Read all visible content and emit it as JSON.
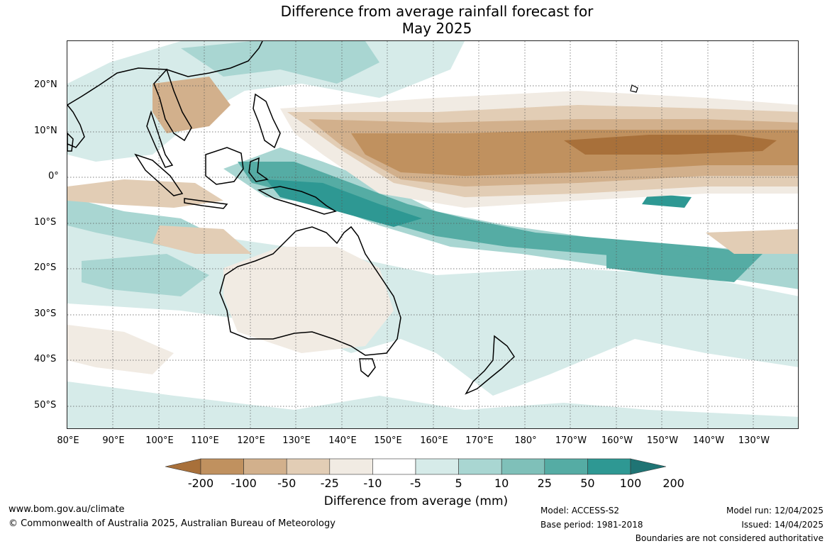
{
  "title_line1": "Difference from average rainfall forecast for",
  "title_line2": "May 2025",
  "lat_labels": [
    "20°N",
    "10°N",
    "0°",
    "10°S",
    "20°S",
    "30°S",
    "40°S",
    "50°S"
  ],
  "lon_labels": [
    "80°E",
    "90°E",
    "100°E",
    "110°E",
    "120°E",
    "130°E",
    "140°E",
    "150°E",
    "160°E",
    "170°E",
    "180°",
    "170°W",
    "160°W",
    "150°W",
    "140°W",
    "130°W"
  ],
  "colorbar": {
    "labels": [
      "-200",
      "-100",
      "-50",
      "-25",
      "-10",
      "-5",
      "5",
      "10",
      "25",
      "50",
      "100",
      "200"
    ],
    "colors": [
      "#a8703a",
      "#c0915f",
      "#d2b08c",
      "#e2cdb5",
      "#f1ebe3",
      "#ffffff",
      "#d6ebe9",
      "#a9d6d2",
      "#7fc0b9",
      "#55aca4",
      "#2e9893",
      "#1f7474"
    ],
    "title": "Difference from average (mm)"
  },
  "footer": {
    "website": "www.bom.gov.au/climate",
    "copyright": "© Commonwealth of Australia 2025, Australian Bureau of Meteorology",
    "model": "Model: ACCESS-S2",
    "base_period": "Base period: 1981-2018",
    "model_run": "Model run: 12/04/2025",
    "issued": "Issued: 14/04/2025",
    "boundaries": "Boundaries are not considered authoritative"
  }
}
